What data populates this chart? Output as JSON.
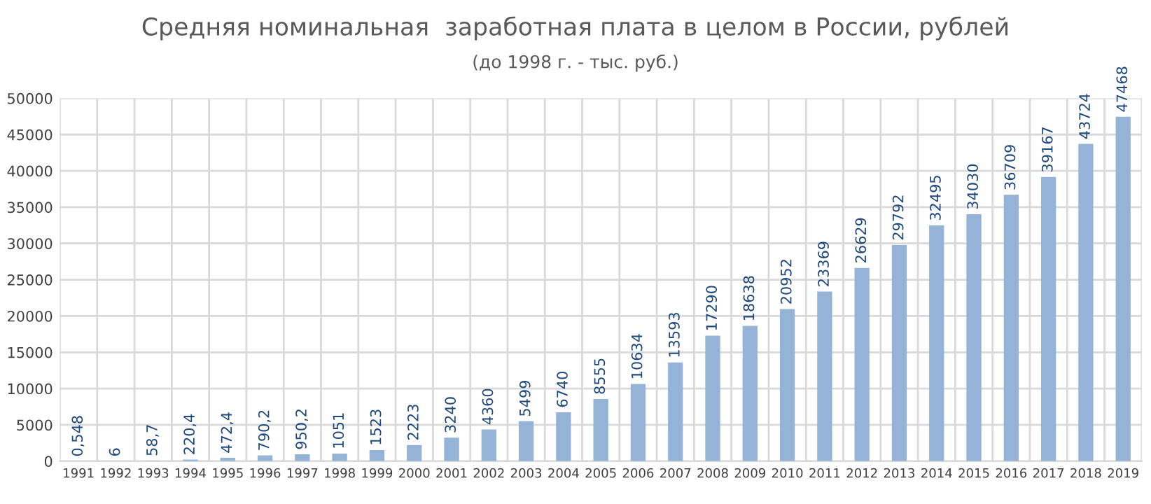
{
  "chart_data": {
    "type": "bar",
    "title": "Средняя номинальная  заработная плата в целом в России, рублей",
    "subtitle": "(до 1998 г. - тыс. руб.)",
    "categories": [
      "1991",
      "1992",
      "1993",
      "1994",
      "1995",
      "1996",
      "1997",
      "1998",
      "1999",
      "2000",
      "2001",
      "2002",
      "2003",
      "2004",
      "2005",
      "2006",
      "2007",
      "2008",
      "2009",
      "2010",
      "2011",
      "2012",
      "2013",
      "2014",
      "2015",
      "2016",
      "2017",
      "2018",
      "2019"
    ],
    "values": [
      0.548,
      6,
      58.7,
      220.4,
      472.4,
      790.2,
      950.2,
      1051,
      1523,
      2223,
      3240,
      4360,
      5499,
      6740,
      8555,
      10634,
      13593,
      17290,
      18638,
      20952,
      23369,
      26629,
      29792,
      32495,
      34030,
      36709,
      39167,
      43724,
      47468
    ],
    "value_labels": [
      "0,548",
      "6",
      "58,7",
      "220,4",
      "472,4",
      "790,2",
      "950,2",
      "1051",
      "1523",
      "2223",
      "3240",
      "4360",
      "5499",
      "6740",
      "8555",
      "10634",
      "13593",
      "17290",
      "18638",
      "20952",
      "23369",
      "26629",
      "29792",
      "32495",
      "34030",
      "36709",
      "39167",
      "43724",
      "47468"
    ],
    "color": "#95b3d7",
    "ylim": [
      0,
      50000
    ],
    "yticks": [
      0,
      5000,
      10000,
      15000,
      20000,
      25000,
      30000,
      35000,
      40000,
      45000,
      50000
    ],
    "grid": true
  }
}
